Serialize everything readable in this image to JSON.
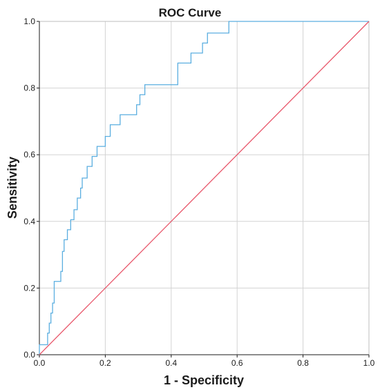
{
  "chart_data": {
    "type": "line",
    "title": "ROC Curve",
    "xlabel": "1 - Specificity",
    "ylabel": "Sensitivity",
    "xlim": [
      0,
      1
    ],
    "ylim": [
      0,
      1
    ],
    "x_ticks": [
      "0.0",
      "0.2",
      "0.4",
      "0.6",
      "0.8",
      "1.0"
    ],
    "y_ticks": [
      "0.0",
      "0.2",
      "0.4",
      "0.6",
      "0.8",
      "1.0"
    ],
    "grid": true,
    "series": [
      {
        "color": "#5aaee0",
        "step": true,
        "x": [
          0.0,
          0.0,
          0.025,
          0.025,
          0.03,
          0.035,
          0.04,
          0.045,
          0.065,
          0.065,
          0.07,
          0.075,
          0.085,
          0.095,
          0.105,
          0.115,
          0.125,
          0.13,
          0.145,
          0.16,
          0.175,
          0.185,
          0.2,
          0.215,
          0.235,
          0.245,
          0.255,
          0.265,
          0.295,
          0.305,
          0.32,
          0.33,
          0.34,
          0.4,
          0.42,
          0.44,
          0.46,
          0.48,
          0.495,
          0.51,
          0.525,
          0.545,
          0.56,
          0.575,
          0.6,
          0.8,
          1.0
        ],
        "y": [
          0.0,
          0.03,
          0.03,
          0.065,
          0.095,
          0.125,
          0.155,
          0.22,
          0.22,
          0.25,
          0.31,
          0.345,
          0.375,
          0.405,
          0.435,
          0.47,
          0.5,
          0.53,
          0.565,
          0.595,
          0.625,
          0.625,
          0.655,
          0.69,
          0.69,
          0.72,
          0.72,
          0.72,
          0.75,
          0.78,
          0.81,
          0.81,
          0.81,
          0.81,
          0.875,
          0.875,
          0.905,
          0.905,
          0.935,
          0.965,
          0.965,
          0.965,
          0.965,
          1.0,
          1.0,
          1.0,
          1.0
        ]
      },
      {
        "color": "#e8566a",
        "step": false,
        "x": [
          0,
          1
        ],
        "y": [
          0,
          1
        ]
      }
    ]
  }
}
